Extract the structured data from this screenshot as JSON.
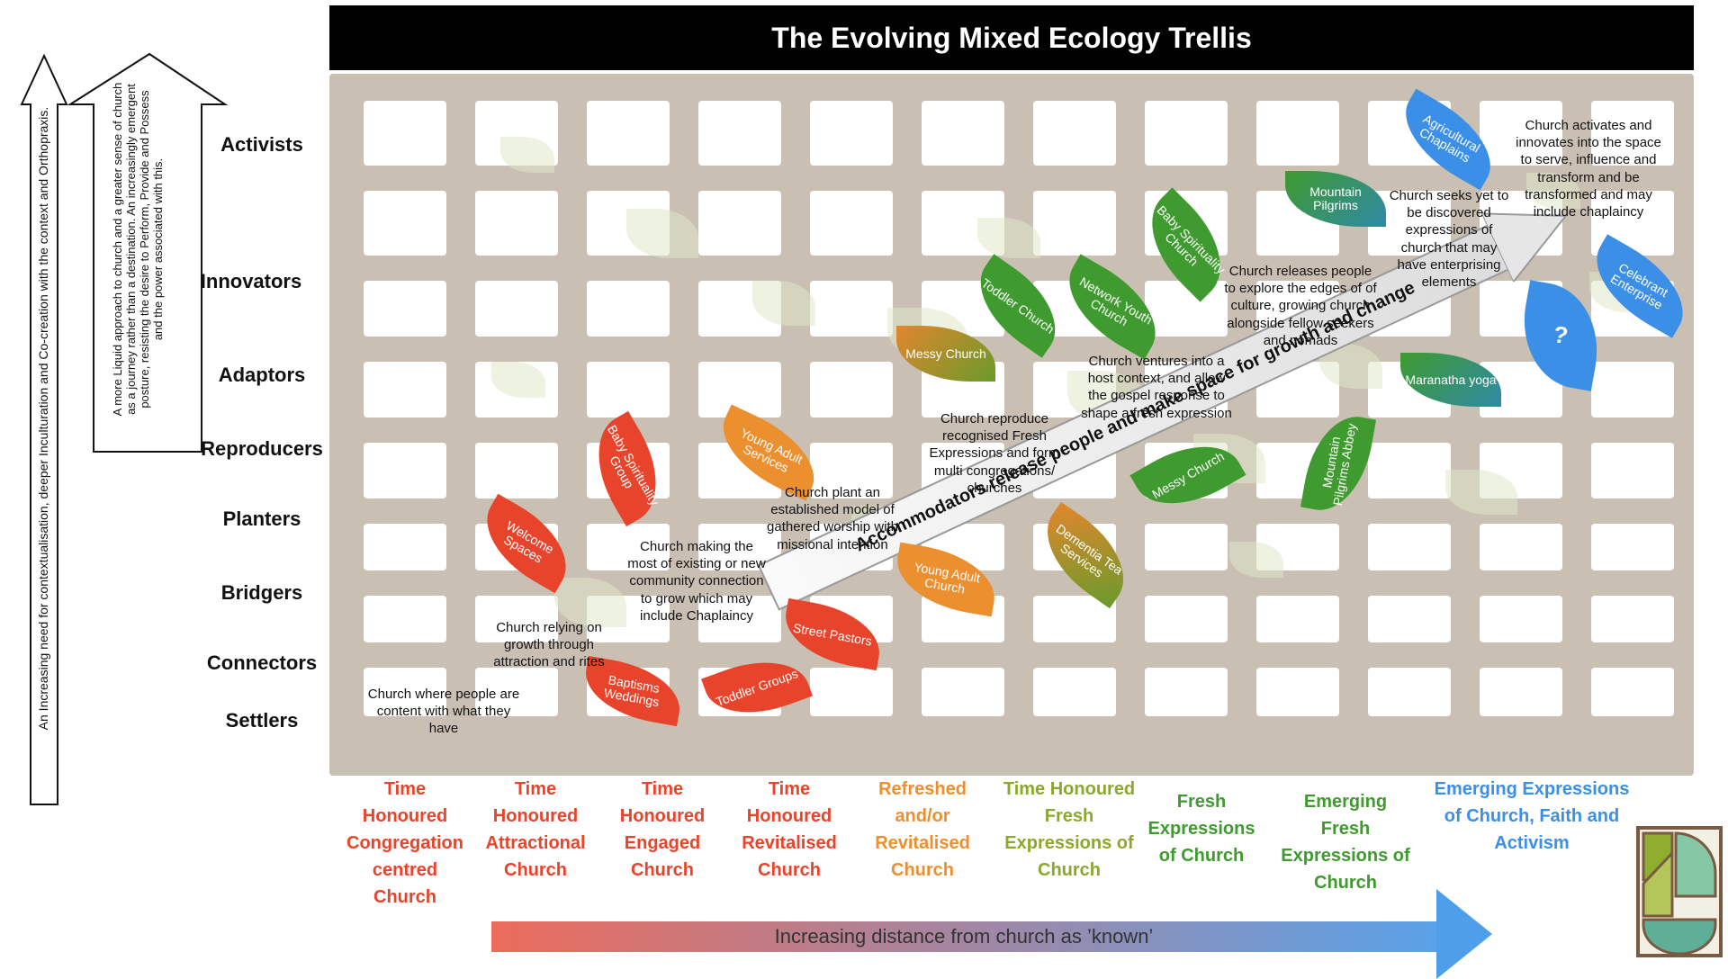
{
  "title": "The Evolving Mixed Ecology Trellis",
  "left_arrow_1": "An Increasing need for contextualisation, deeper Inculturation and Co-creation with the context and Orthopraxis.",
  "left_arrow_2": "A more Liquid approach to church and a greater sense of church as a journey rather than a destination. An increasingly emergent posture, resisting the desire to Perform, Provide and Possess and the power associated with this.",
  "roles": {
    "activists": "Activists",
    "innovators": "Innovators",
    "adaptors": "Adaptors",
    "reproducers": "Reproducers",
    "planters": "Planters",
    "bridgers": "Bridgers",
    "connectors": "Connectors",
    "settlers": "Settlers"
  },
  "leaves": {
    "welcome_spaces": "Welcome Spaces",
    "baby_spirituality_group": "Baby Spirituality Group",
    "baptisms_weddings": "Baptisms Weddings",
    "toddler_groups": "Toddler Groups",
    "street_pastors": "Street Pastors",
    "young_adult_services": "Young Adult Services",
    "young_adult_church": "Young Adult Church",
    "dementia_tea_services": "Dementia Tea Services",
    "messy_church_1": "Messy Church",
    "toddler_church": "Toddler Church",
    "network_youth_church": "Network Youth Church",
    "baby_spirituality_church": "Baby Spirituality Church",
    "messy_church_2": "Messy Church",
    "mountain_pilgrims_abbey": "Mountain Pilgrims Abbey",
    "mountain_pilgrims": "Mountain Pilgrims",
    "agricultural_chaplains": "Agricultural Chaplains",
    "maranatha_yoga": "Maranatha yoga",
    "celebrant_enterprise": "Celebrant Enterprise",
    "question": "?"
  },
  "notes": {
    "settlers": "Church  where people are content with what they have",
    "attraction": "Church relying on growth through attraction and rites",
    "existing": "Church making the most of existing or new community connection to grow which may include Chaplaincy",
    "plant": "Church plant an established model of gathered worship with missional intention",
    "reproduce": "Church reproduce recognised Fresh Expressions and form multi congregations/ churches",
    "host": "Church ventures into a host context, and allow the gospel response to shape a fresh expression",
    "releases": "Church releases people to explore the edges of of culture, growing church alongside fellow seekers and nomads",
    "seeks": "Church seeks yet to be discovered expressions of church that may have enterprising elements",
    "activates": "Church activates and innovates into the space to serve, influence and transform and be transformed and may include chaplaincy"
  },
  "accommodators": "Accommodators release people and make space for growth and change",
  "columns": {
    "c1": "Time Honoured Congregation centred Church",
    "c2": "Time Honoured Attractional Church",
    "c3": "Time Honoured Engaged Church",
    "c4": "Time Honoured Revitalised Church",
    "c5": "Refreshed and/or Revitalised Church",
    "c6": "Time Honoured Fresh Expressions of Church",
    "c7": "Fresh Expressions of Church",
    "c8": "Emerging Fresh Expressions of Church",
    "c9": "Emerging Expressions of Church, Faith and Activism"
  },
  "distance_label": "Increasing distance from church as ’known’",
  "colors": {
    "red": "#e8442b",
    "orange": "#ec8f2e",
    "green": "#3f9a2f",
    "blue": "#3b8fe6",
    "teal": "#2f8aa6"
  }
}
